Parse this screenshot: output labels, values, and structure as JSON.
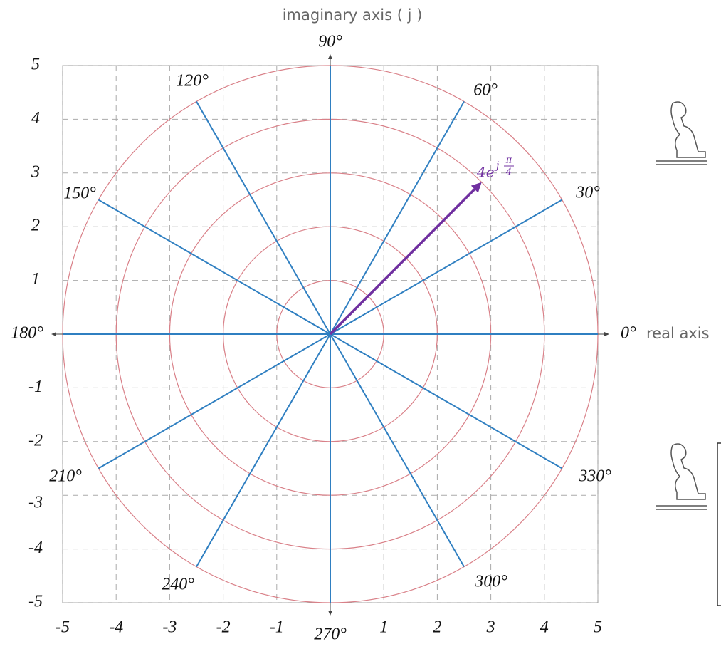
{
  "chart_data": {
    "type": "polar",
    "title": "imaginary axis ( j )",
    "x_label": "real axis",
    "xlim": [
      -5,
      5
    ],
    "ylim": [
      -5,
      5
    ],
    "xticks": [
      -5,
      -4,
      -3,
      -2,
      -1,
      1,
      2,
      3,
      4,
      5
    ],
    "yticks": [
      -5,
      -4,
      -3,
      -2,
      -1,
      1,
      2,
      3,
      4,
      5
    ],
    "grid": true,
    "rings": [
      1,
      2,
      3,
      4,
      5
    ],
    "ring_color": "#d98088",
    "spoke_color": "#2f7fc1",
    "angles": [
      {
        "value": 0,
        "label": "0°"
      },
      {
        "value": 30,
        "label": "30°"
      },
      {
        "value": 60,
        "label": "60°"
      },
      {
        "value": 90,
        "label": "90°"
      },
      {
        "value": 120,
        "label": "120°"
      },
      {
        "value": 150,
        "label": "150°"
      },
      {
        "value": 180,
        "label": "180°"
      },
      {
        "value": 210,
        "label": "210°"
      },
      {
        "value": 240,
        "label": "240°"
      },
      {
        "value": 270,
        "label": "270°"
      },
      {
        "value": 300,
        "label": "300°"
      },
      {
        "value": 330,
        "label": "330°"
      }
    ],
    "vector": {
      "magnitude": 4,
      "angle": 45,
      "color": "#7030a0",
      "label_base": "4e",
      "label_j": "j",
      "label_num": "π",
      "label_den": "4"
    }
  }
}
